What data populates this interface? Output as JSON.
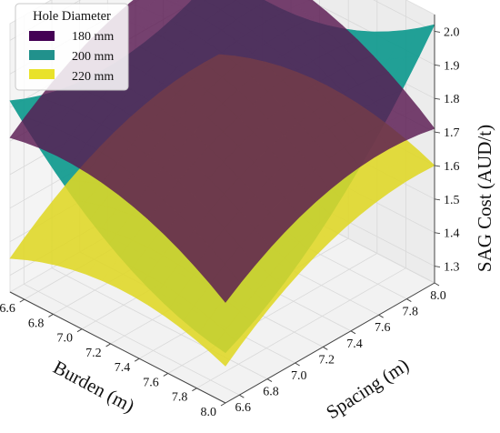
{
  "chart_data": {
    "type": "surface3d",
    "title": "",
    "xlabel": "Burden (m)",
    "ylabel": "Spacing (m)",
    "zlabel": "SAG Cost (AUD/t)",
    "xlim": [
      6.5,
      8.0
    ],
    "ylim": [
      6.5,
      8.0
    ],
    "zlim": [
      1.25,
      2.05
    ],
    "xticks": [
      "6.6",
      "6.8",
      "7.0",
      "7.2",
      "7.4",
      "7.6",
      "7.8",
      "8.0"
    ],
    "yticks": [
      "6.6",
      "6.8",
      "7.0",
      "7.2",
      "7.4",
      "7.6",
      "7.8",
      "8.0"
    ],
    "zticks": [
      "1.3",
      "1.4",
      "1.5",
      "1.6",
      "1.7",
      "1.8",
      "1.9",
      "2.0"
    ],
    "legend": {
      "title": "Hole Diameter",
      "placement": "top-left"
    },
    "series": [
      {
        "name": "180 mm",
        "color": "#440154",
        "corners": {
          "b6.5_s6.5": 1.71,
          "b6.5_s8.0": 1.92,
          "b8.0_s6.5": 1.55,
          "b8.0_s8.0": 1.71,
          "mid": 1.8
        }
      },
      {
        "name": "200 mm",
        "color": "#21918c",
        "corners": {
          "b6.5_s6.5": 1.82,
          "b6.5_s8.0": 1.85,
          "b8.0_s6.5": 1.4,
          "b8.0_s8.0": 2.02,
          "mid": 1.69
        }
      },
      {
        "name": "220 mm",
        "color": "#fde725",
        "corners": {
          "b6.5_s6.5": 1.35,
          "b6.5_s8.0": 1.6,
          "b8.0_s6.5": 1.36,
          "b8.0_s8.0": 1.6,
          "mid": 1.55
        }
      }
    ]
  }
}
